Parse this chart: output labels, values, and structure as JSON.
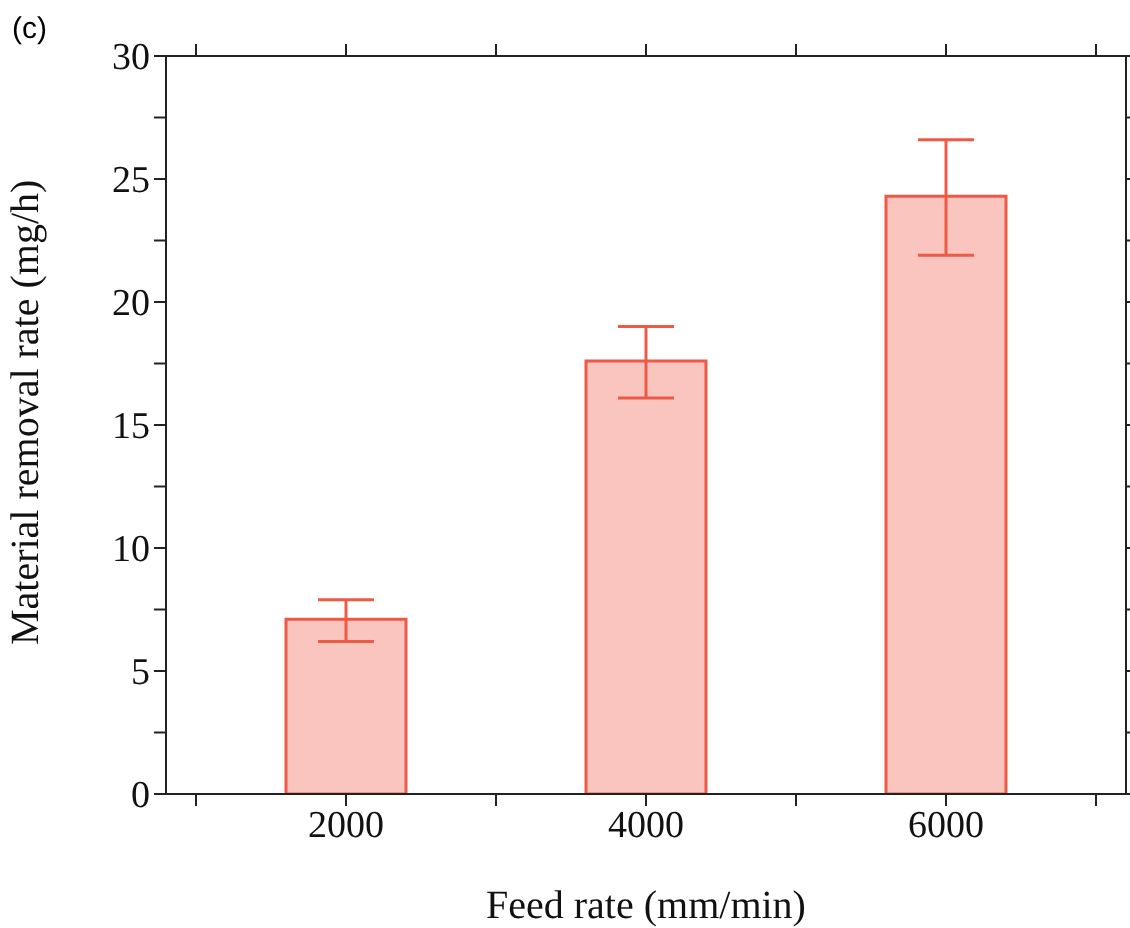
{
  "chart_data": {
    "type": "bar",
    "xlabel": "Feed rate (mm/min)",
    "ylabel": "Material removal rate (mg/h)",
    "annotations": [
      "(c)"
    ],
    "x": [
      2000,
      4000,
      6000
    ],
    "series": [
      {
        "color": "#ee5a46",
        "values": [
          7.1,
          17.6,
          24.3
        ],
        "errors": [
          [
            6.2,
            7.9
          ],
          [
            16.1,
            19.0
          ],
          [
            21.9,
            26.6
          ]
        ]
      }
    ],
    "xlim": [
      800,
      7200
    ],
    "xticks": [
      {
        "value": 1000,
        "label": null
      },
      2000,
      {
        "value": 3000,
        "label": null
      },
      4000,
      {
        "value": 5000,
        "label": null
      },
      6000,
      {
        "value": 7000,
        "label": null
      }
    ],
    "ylim": [
      0,
      30
    ],
    "yticks": [
      0,
      {
        "value": 2.5,
        "label": null
      },
      5,
      {
        "value": 7.5,
        "label": null
      },
      10,
      {
        "value": 12.5,
        "label": null
      },
      15,
      {
        "value": 17.5,
        "label": null
      },
      20,
      {
        "value": 22.5,
        "label": null
      },
      25,
      {
        "value": 27.5,
        "label": null
      },
      30
    ],
    "grid": false,
    "legend": false
  }
}
